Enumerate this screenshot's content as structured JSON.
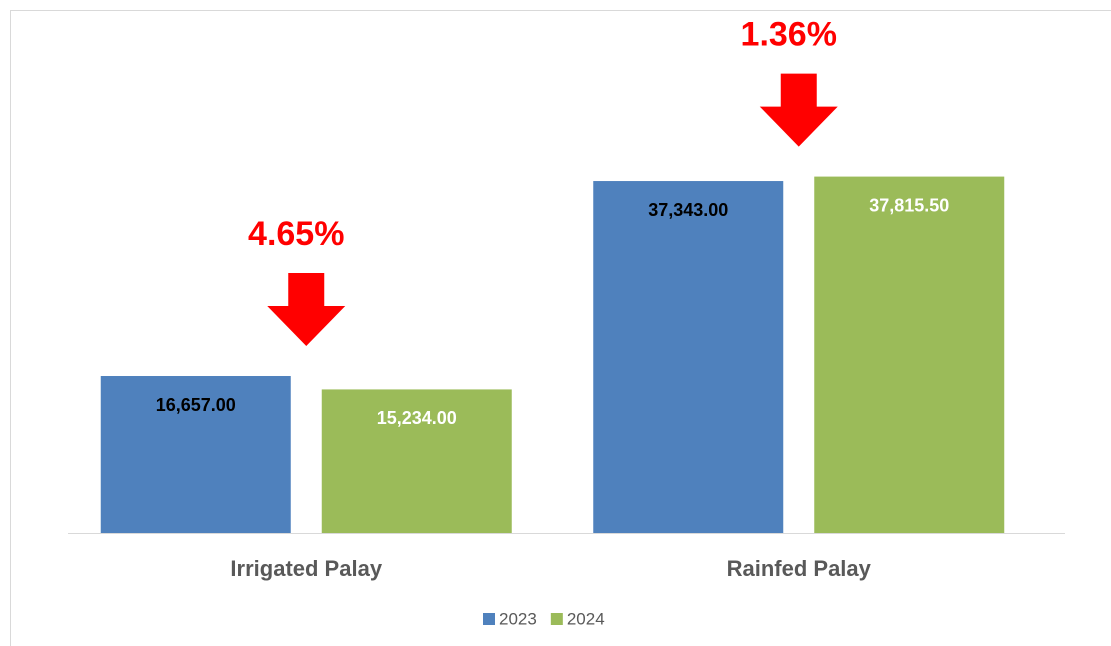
{
  "chart_data": {
    "type": "bar",
    "categories": [
      "Irrigated Palay",
      "Rainfed Palay"
    ],
    "series": [
      {
        "name": "2023",
        "color": "#4f81bd",
        "label_color": "#000000",
        "values": [
          16657,
          37343
        ],
        "value_labels": [
          "16,657.00",
          "37,343.00"
        ]
      },
      {
        "name": "2024",
        "color": "#9bbb59",
        "label_color": "#ffffff",
        "values": [
          15234,
          37815.5
        ],
        "value_labels": [
          "15,234.00",
          "37,815.50"
        ]
      }
    ],
    "annotations": [
      {
        "text": "4.65%",
        "category": 0
      },
      {
        "text": "1.36%",
        "category": 1
      }
    ],
    "annotation_color": "#ff0000",
    "ylim": [
      0,
      40000
    ],
    "legend": "bottom"
  }
}
